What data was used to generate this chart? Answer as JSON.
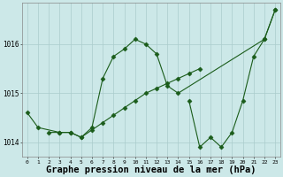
{
  "background_color": "#cce8e8",
  "grid_color": "#aacccc",
  "line_color": "#1a5c1a",
  "title": "Graphe pression niveau de la mer (hPa)",
  "hours": [
    0,
    1,
    2,
    3,
    4,
    5,
    6,
    7,
    8,
    9,
    10,
    11,
    12,
    13,
    14,
    15,
    16,
    17,
    18,
    19,
    20,
    21,
    22,
    23
  ],
  "series1_x": [
    0,
    1,
    3,
    4,
    5,
    6,
    7,
    8,
    9,
    10,
    11,
    12,
    13,
    14,
    22,
    23
  ],
  "series1_y": [
    1014.6,
    1014.3,
    1014.2,
    1014.2,
    1014.1,
    1014.3,
    1015.3,
    1015.75,
    1015.9,
    1016.1,
    1016.0,
    1015.8,
    1015.15,
    1015.0,
    1016.1,
    1016.7
  ],
  "series2_x": [
    2,
    3,
    4,
    5,
    6,
    7,
    8,
    9,
    10,
    11,
    12,
    13,
    14,
    15,
    16
  ],
  "series2_y": [
    1014.2,
    1014.2,
    1014.2,
    1014.1,
    1014.25,
    1014.4,
    1014.55,
    1014.7,
    1014.85,
    1015.0,
    1015.1,
    1015.2,
    1015.3,
    1015.4,
    1015.5
  ],
  "series3_x": [
    15,
    16,
    17,
    18,
    19,
    20,
    21,
    22,
    23
  ],
  "series3_y": [
    1014.85,
    1013.9,
    1014.1,
    1013.9,
    1014.2,
    1014.85,
    1015.75,
    1016.1,
    1016.7
  ],
  "ylim": [
    1013.7,
    1016.85
  ],
  "yticks": [
    1014,
    1015,
    1016
  ],
  "title_fontsize": 7.5,
  "marker": "D",
  "markersize": 2.5,
  "linewidth": 0.8
}
